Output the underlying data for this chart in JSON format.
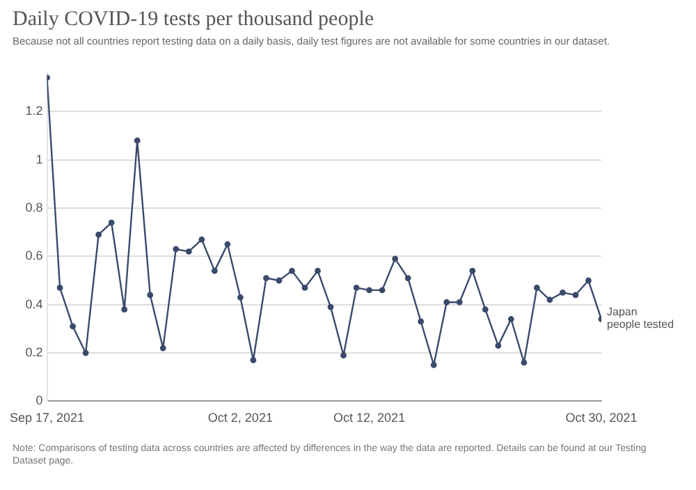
{
  "chart_data": {
    "type": "line",
    "title": "Daily COVID-19 tests per thousand people",
    "subtitle": "Because not all countries report testing data on a daily basis, daily test figures are not available for some countries in our dataset.",
    "x": [
      "2021-09-17",
      "2021-09-18",
      "2021-09-19",
      "2021-09-20",
      "2021-09-21",
      "2021-09-22",
      "2021-09-23",
      "2021-09-24",
      "2021-09-25",
      "2021-09-26",
      "2021-09-27",
      "2021-09-28",
      "2021-09-29",
      "2021-09-30",
      "2021-10-01",
      "2021-10-02",
      "2021-10-03",
      "2021-10-04",
      "2021-10-05",
      "2021-10-06",
      "2021-10-07",
      "2021-10-08",
      "2021-10-09",
      "2021-10-10",
      "2021-10-11",
      "2021-10-12",
      "2021-10-13",
      "2021-10-14",
      "2021-10-15",
      "2021-10-16",
      "2021-10-17",
      "2021-10-18",
      "2021-10-19",
      "2021-10-20",
      "2021-10-21",
      "2021-10-22",
      "2021-10-23",
      "2021-10-24",
      "2021-10-25",
      "2021-10-26",
      "2021-10-27",
      "2021-10-28",
      "2021-10-29",
      "2021-10-30"
    ],
    "series": [
      {
        "name": "Japan",
        "color": "#3a4a6b",
        "values": [
          1.34,
          0.47,
          0.31,
          0.2,
          0.69,
          0.74,
          0.38,
          1.08,
          0.44,
          0.22,
          0.63,
          0.62,
          0.67,
          0.54,
          0.65,
          0.43,
          0.17,
          0.51,
          0.5,
          0.54,
          0.47,
          0.54,
          0.39,
          0.19,
          0.47,
          0.46,
          0.46,
          0.59,
          0.51,
          0.33,
          0.15,
          0.41,
          0.41,
          0.54,
          0.38,
          0.23,
          0.34,
          0.16,
          0.47,
          0.42,
          0.45,
          0.44,
          0.5,
          0.34
        ]
      }
    ],
    "ylim": [
      0,
      1.36
    ],
    "yticks": [
      0,
      0.2,
      0.4,
      0.6,
      0.8,
      1,
      1.2
    ],
    "xlim": [
      "2021-09-17",
      "2021-10-30"
    ],
    "xticks": [
      {
        "value": "2021-09-17",
        "label": "Sep 17, 2021"
      },
      {
        "value": "2021-10-02",
        "label": "Oct 2, 2021"
      },
      {
        "value": "2021-10-12",
        "label": "Oct 12, 2021"
      },
      {
        "value": "2021-10-30",
        "label": "Oct 30, 2021"
      }
    ],
    "grid": "y",
    "marker": "circle",
    "line_style": "solid",
    "legend": false,
    "annotations": [
      {
        "text": "people tested",
        "x": "2021-10-30",
        "y": 0.34
      },
      "Note: Comparisons of testing data across countries are affected by differences in the way the data are reported. Details can be found at our Testing Dataset page."
    ]
  }
}
